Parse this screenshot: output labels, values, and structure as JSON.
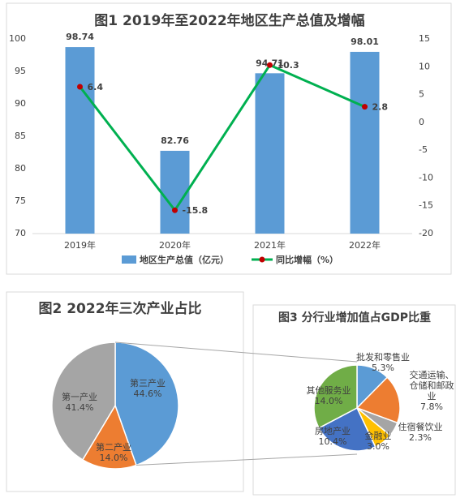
{
  "chart_data": [
    {
      "type": "bar",
      "title": "图1 2019年至2022年地区生产总值及增幅",
      "categories": [
        "2019年",
        "2020年",
        "2021年",
        "2022年"
      ],
      "series": [
        {
          "name": "地区生产总值（亿元）",
          "color": "#5b9bd5",
          "values": [
            98.74,
            82.76,
            94.71,
            98.01
          ]
        },
        {
          "name": "同比增幅（%）",
          "type": "line",
          "color": "#00b050",
          "marker_color": "#c00000",
          "axis": "y2",
          "values": [
            6.4,
            -15.8,
            10.3,
            2.8
          ]
        }
      ],
      "ylim": [
        70,
        100
      ],
      "yticks": [
        70,
        75,
        80,
        85,
        90,
        95,
        100
      ],
      "y2lim": [
        -20,
        15
      ],
      "y2ticks": [
        -20,
        -15,
        -10,
        -5,
        0,
        5,
        10,
        15
      ],
      "legend": "bottom"
    },
    {
      "type": "pie",
      "title": "图2 2022年三次产业占比",
      "categories": [
        "第三产业",
        "第二产业",
        "第一产业"
      ],
      "values": [
        44.6,
        14.0,
        41.4
      ],
      "value_labels": [
        "44.6%",
        "14.0%",
        "41.4%"
      ],
      "colors": [
        "#5b9bd5",
        "#ed7d31",
        "#a5a5a5"
      ]
    },
    {
      "type": "pie",
      "title": "图3 分行业增加值占GDP比重",
      "categories": [
        "批发和零售业",
        "交通运输、仓储和邮政业",
        "住宿餐饮业",
        "金融业",
        "房地产业",
        "其他服务业"
      ],
      "values": [
        5.3,
        7.8,
        2.3,
        3.0,
        10.4,
        14.0
      ],
      "value_labels": [
        "5.3%",
        "7.8%",
        "2.3%",
        "3.0%",
        "10.4%",
        "14.0%"
      ],
      "colors": [
        "#5b9bd5",
        "#ed7d31",
        "#a5a5a5",
        "#ffc000",
        "#4472c4",
        "#70ad47"
      ]
    }
  ]
}
